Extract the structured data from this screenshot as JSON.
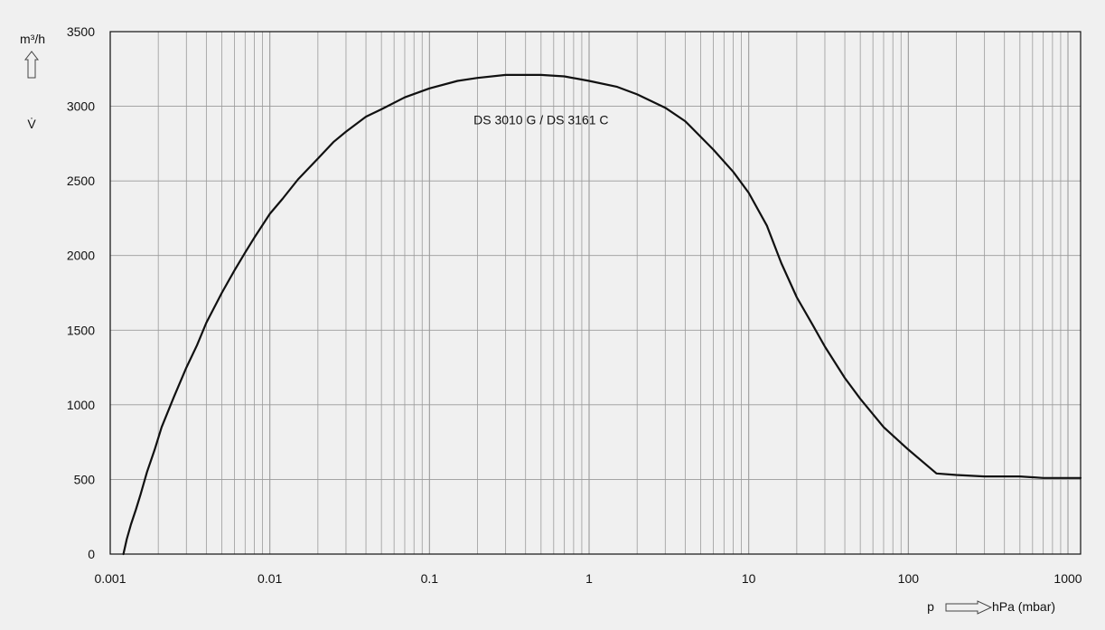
{
  "chart_data": {
    "type": "line",
    "y_unit": "m³/h",
    "y_symbol": "V̇",
    "x_prefix": "p",
    "x_unit": "hPa (mbar)",
    "x_scale": "log",
    "xlim": [
      0.001,
      1200
    ],
    "ylim": [
      0,
      3500
    ],
    "grid": true,
    "x_ticks": [
      {
        "value": 0.001,
        "label": "0.001"
      },
      {
        "value": 0.01,
        "label": "0.01"
      },
      {
        "value": 0.1,
        "label": "0.1"
      },
      {
        "value": 1,
        "label": "1"
      },
      {
        "value": 10,
        "label": "10"
      },
      {
        "value": 100,
        "label": "100"
      },
      {
        "value": 1000,
        "label": "1000"
      }
    ],
    "y_ticks": [
      {
        "value": 0,
        "label": "0"
      },
      {
        "value": 500,
        "label": "500"
      },
      {
        "value": 1000,
        "label": "1000"
      },
      {
        "value": 1500,
        "label": "1500"
      },
      {
        "value": 2000,
        "label": "2000"
      },
      {
        "value": 2500,
        "label": "2500"
      },
      {
        "value": 3000,
        "label": "3000"
      },
      {
        "value": 3500,
        "label": "3500"
      }
    ],
    "series": [
      {
        "name": "DS 3010 G / DS 3161 C",
        "color": "#111111",
        "label_at": {
          "x": 0.5,
          "y": 2880
        },
        "x": [
          0.00121,
          0.00127,
          0.00135,
          0.00145,
          0.00155,
          0.0017,
          0.0019,
          0.0021,
          0.0025,
          0.003,
          0.0035,
          0.004,
          0.005,
          0.006,
          0.007,
          0.008,
          0.01,
          0.012,
          0.015,
          0.02,
          0.025,
          0.03,
          0.04,
          0.05,
          0.07,
          0.1,
          0.15,
          0.2,
          0.3,
          0.5,
          0.7,
          1,
          1.5,
          2,
          3,
          4,
          6,
          8,
          10,
          13,
          16,
          20,
          25,
          30,
          40,
          50,
          70,
          100,
          150,
          200,
          300,
          500,
          700,
          1000,
          1200
        ],
        "y": [
          0,
          100,
          200,
          300,
          400,
          550,
          700,
          850,
          1050,
          1250,
          1400,
          1550,
          1750,
          1900,
          2020,
          2120,
          2280,
          2380,
          2510,
          2650,
          2760,
          2830,
          2930,
          2980,
          3060,
          3120,
          3170,
          3190,
          3210,
          3210,
          3200,
          3170,
          3130,
          3080,
          2990,
          2900,
          2710,
          2560,
          2420,
          2200,
          1950,
          1720,
          1540,
          1390,
          1180,
          1040,
          850,
          700,
          540,
          530,
          520,
          520,
          510,
          510,
          510
        ]
      }
    ]
  }
}
